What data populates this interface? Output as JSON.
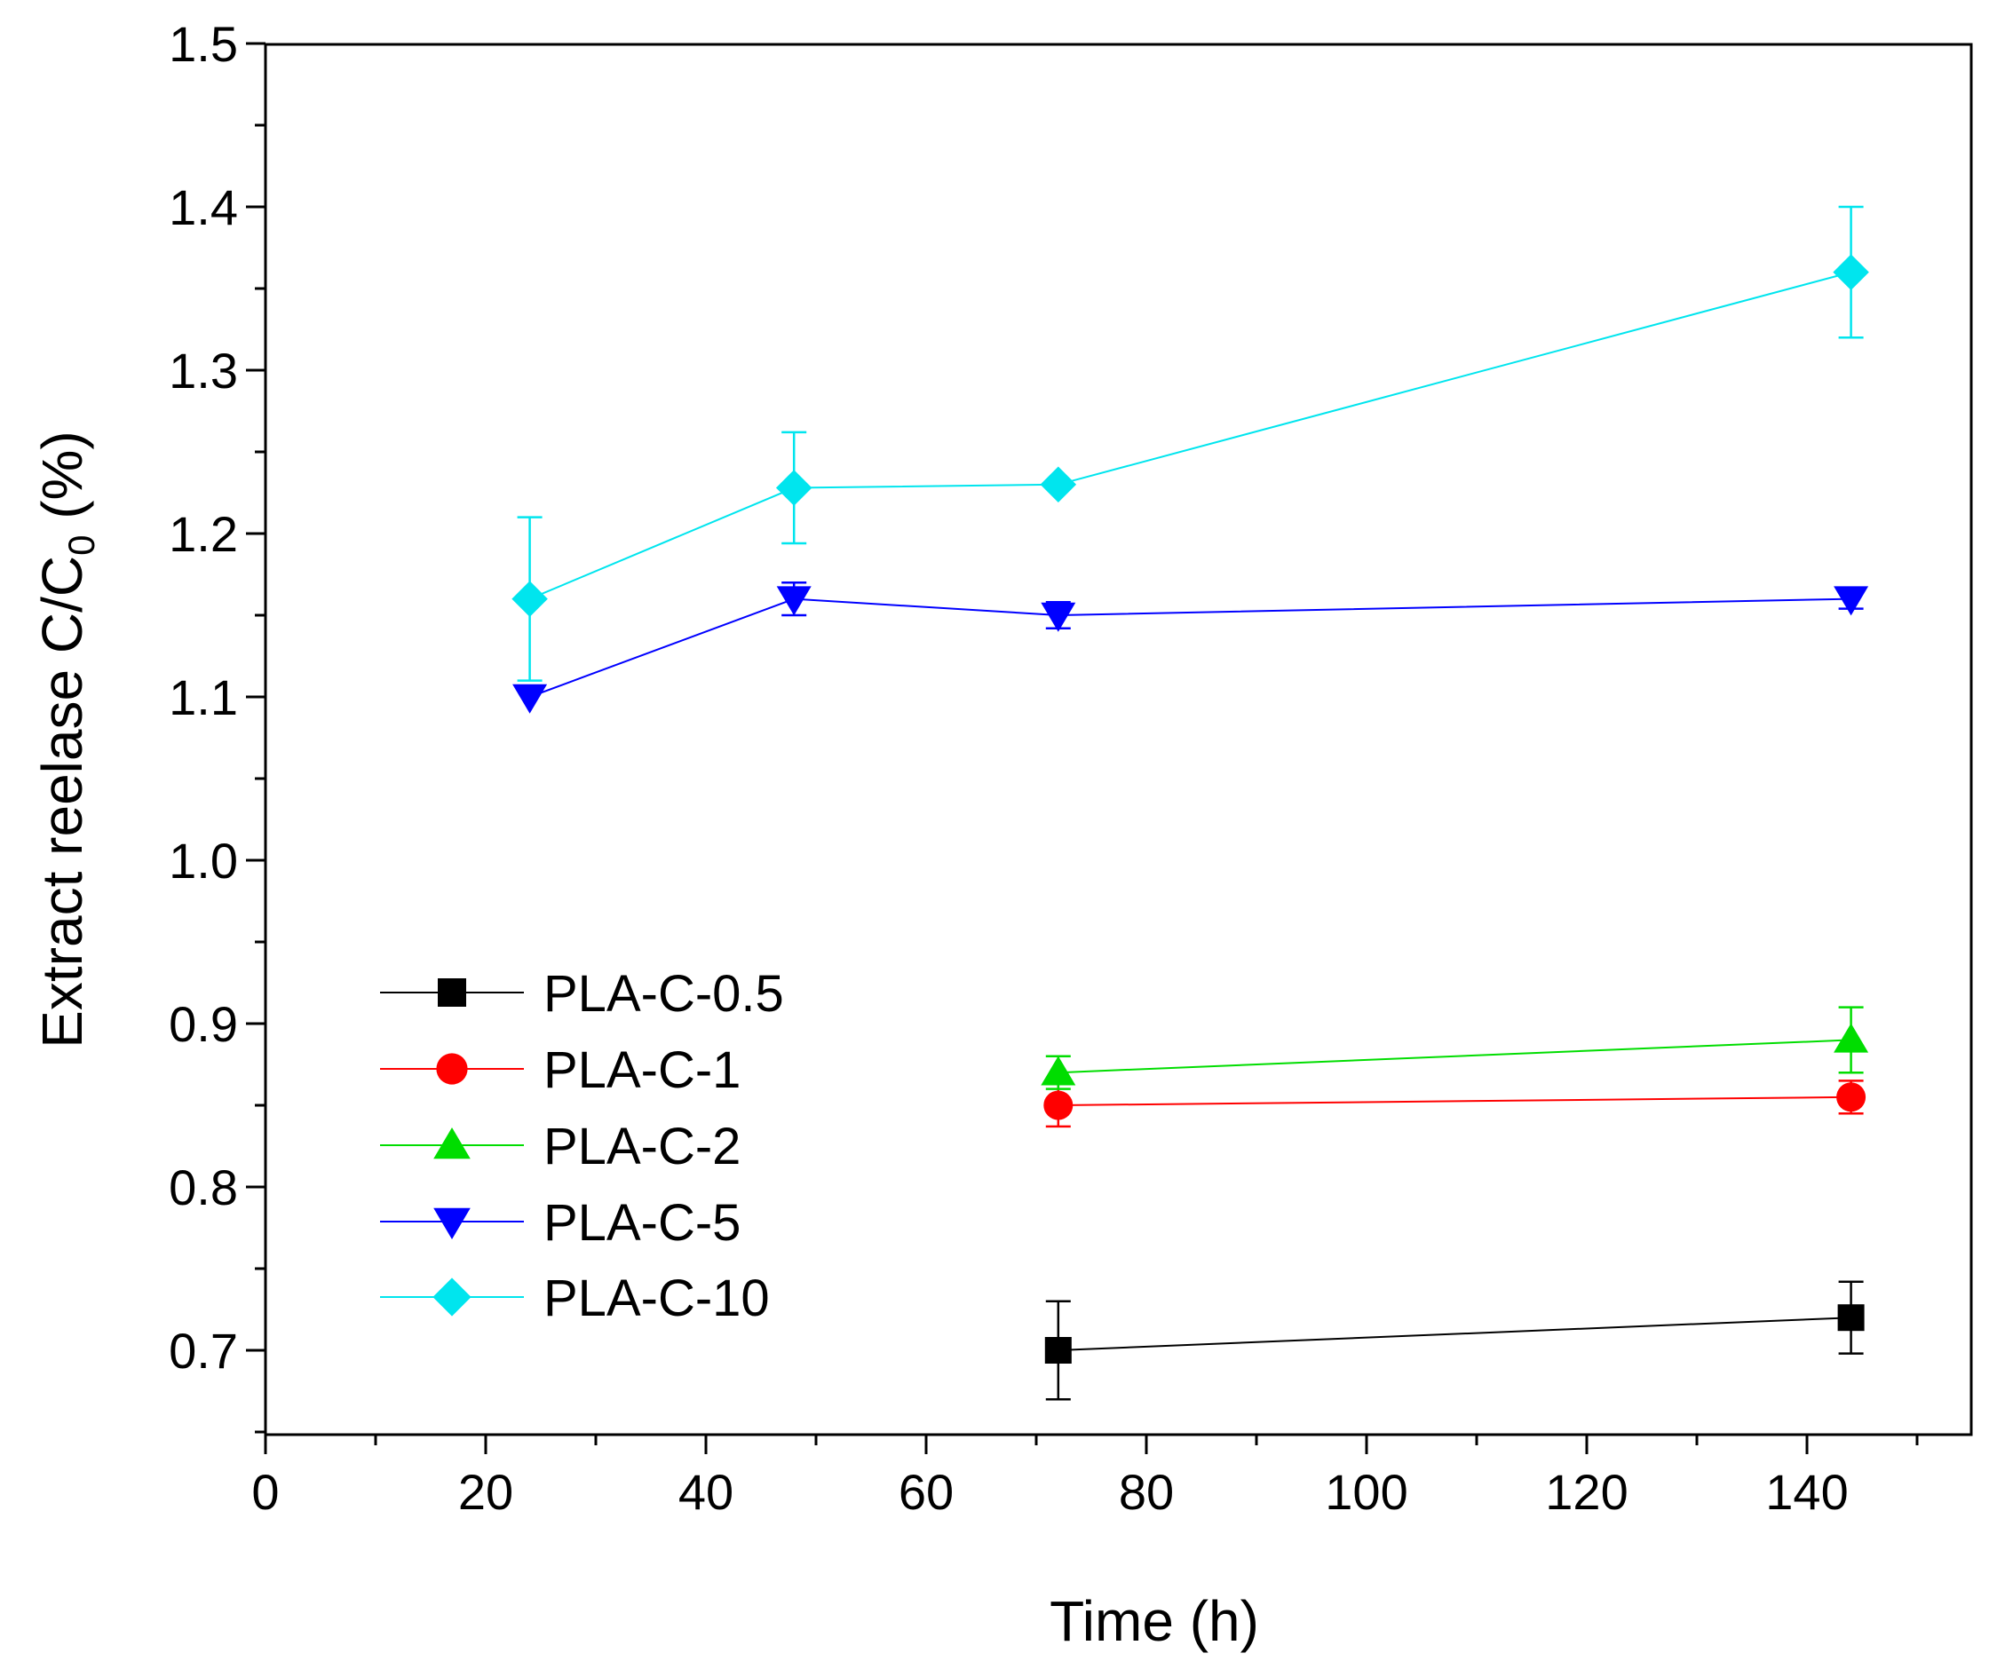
{
  "chart_data": {
    "type": "line",
    "title": "",
    "xlabel": "Time (h)",
    "ylabel_main": "Extract reelase C/C",
    "ylabel_sub": "0",
    "ylabel_suffix": " (%)",
    "xlim": [
      0,
      155
    ],
    "ylim": [
      0.65,
      1.5
    ],
    "x_ticks": [
      0,
      20,
      40,
      60,
      80,
      100,
      120,
      140
    ],
    "x_minor_step": 10,
    "y_ticks": [
      0.7,
      0.8,
      0.9,
      1.0,
      1.1,
      1.2,
      1.3,
      1.4,
      1.5
    ],
    "y_tick_labels": [
      "0.7",
      "0.8",
      "0.9",
      "1.0",
      "1.1",
      "1.2",
      "1.3",
      "1.4",
      "1.5"
    ],
    "y_minor_step": 0.05,
    "legend_position": "bottom-left",
    "series": [
      {
        "name": "PLA-C-0.5",
        "color": "#000000",
        "marker": "square",
        "x": [
          72,
          144
        ],
        "y": [
          0.7,
          0.72
        ],
        "err": [
          0.03,
          0.022
        ]
      },
      {
        "name": "PLA-C-1",
        "color": "#ff0000",
        "marker": "circle",
        "x": [
          72,
          144
        ],
        "y": [
          0.85,
          0.855
        ],
        "err": [
          0.013,
          0.01
        ]
      },
      {
        "name": "PLA-C-2",
        "color": "#00dd00",
        "marker": "triangle-up",
        "x": [
          72,
          144
        ],
        "y": [
          0.87,
          0.89
        ],
        "err": [
          0.01,
          0.02
        ]
      },
      {
        "name": "PLA-C-5",
        "color": "#0000ff",
        "marker": "triangle-down",
        "x": [
          24,
          48,
          72,
          144
        ],
        "y": [
          1.1,
          1.16,
          1.15,
          1.16
        ],
        "err": [
          0.0,
          0.01,
          0.008,
          0.006
        ]
      },
      {
        "name": "PLA-C-10",
        "color": "#00e5ee",
        "marker": "diamond",
        "x": [
          24,
          48,
          72,
          144
        ],
        "y": [
          1.16,
          1.228,
          1.23,
          1.36
        ],
        "err": [
          0.05,
          0.034,
          0.0,
          0.04
        ]
      }
    ]
  }
}
